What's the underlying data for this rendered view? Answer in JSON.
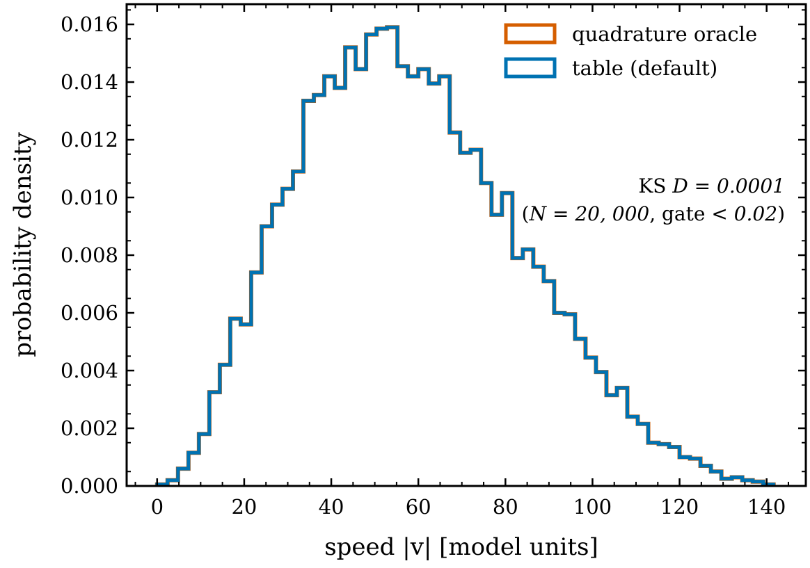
{
  "chart_data": {
    "type": "histogram",
    "xlabel": "speed |v| [model units]",
    "ylabel": "probability density",
    "xlim": [
      -7,
      149
    ],
    "ylim": [
      0,
      0.0167
    ],
    "xticks": [
      0,
      20,
      40,
      60,
      80,
      100,
      120,
      140
    ],
    "yticks": [
      0.0,
      0.002,
      0.004,
      0.006,
      0.008,
      0.01,
      0.012,
      0.014,
      0.016
    ],
    "xtick_labels": [
      "0",
      "20",
      "40",
      "60",
      "80",
      "100",
      "120",
      "140"
    ],
    "ytick_labels": [
      "0.000",
      "0.002",
      "0.004",
      "0.006",
      "0.008",
      "0.010",
      "0.012",
      "0.014",
      "0.016"
    ],
    "bins": {
      "start": 0,
      "width": 2.4,
      "values": [
        5e-05,
        0.0002,
        0.0006,
        0.00115,
        0.0018,
        0.00325,
        0.0042,
        0.0058,
        0.0056,
        0.0074,
        0.009,
        0.00975,
        0.0103,
        0.0109,
        0.01335,
        0.01355,
        0.0142,
        0.0138,
        0.0152,
        0.01445,
        0.01565,
        0.01585,
        0.0159,
        0.01455,
        0.0142,
        0.01445,
        0.01395,
        0.0142,
        0.01225,
        0.01155,
        0.01165,
        0.0105,
        0.0094,
        0.01015,
        0.0079,
        0.0082,
        0.0076,
        0.0071,
        0.006,
        0.00595,
        0.0051,
        0.00445,
        0.00395,
        0.00315,
        0.0034,
        0.0024,
        0.00215,
        0.0015,
        0.00145,
        0.00135,
        0.001,
        0.00095,
        0.0007,
        0.0005,
        0.00025,
        0.0003,
        0.0002,
        0.00015,
        5e-05
      ]
    },
    "series": [
      {
        "name": "quadrature oracle",
        "color": "#D55E00"
      },
      {
        "name": "table (default)",
        "color": "#0072B2"
      }
    ],
    "legend_position": "top-right",
    "annotation": {
      "line1_prefix": "KS ",
      "line1_math": "D = 0.0001",
      "line2_prefix": "(",
      "line2_math": "N = 20, 000",
      "line2_mid": ", gate ",
      "line2_math2": "< 0.02",
      "line2_suffix": ")"
    },
    "grid": false
  }
}
